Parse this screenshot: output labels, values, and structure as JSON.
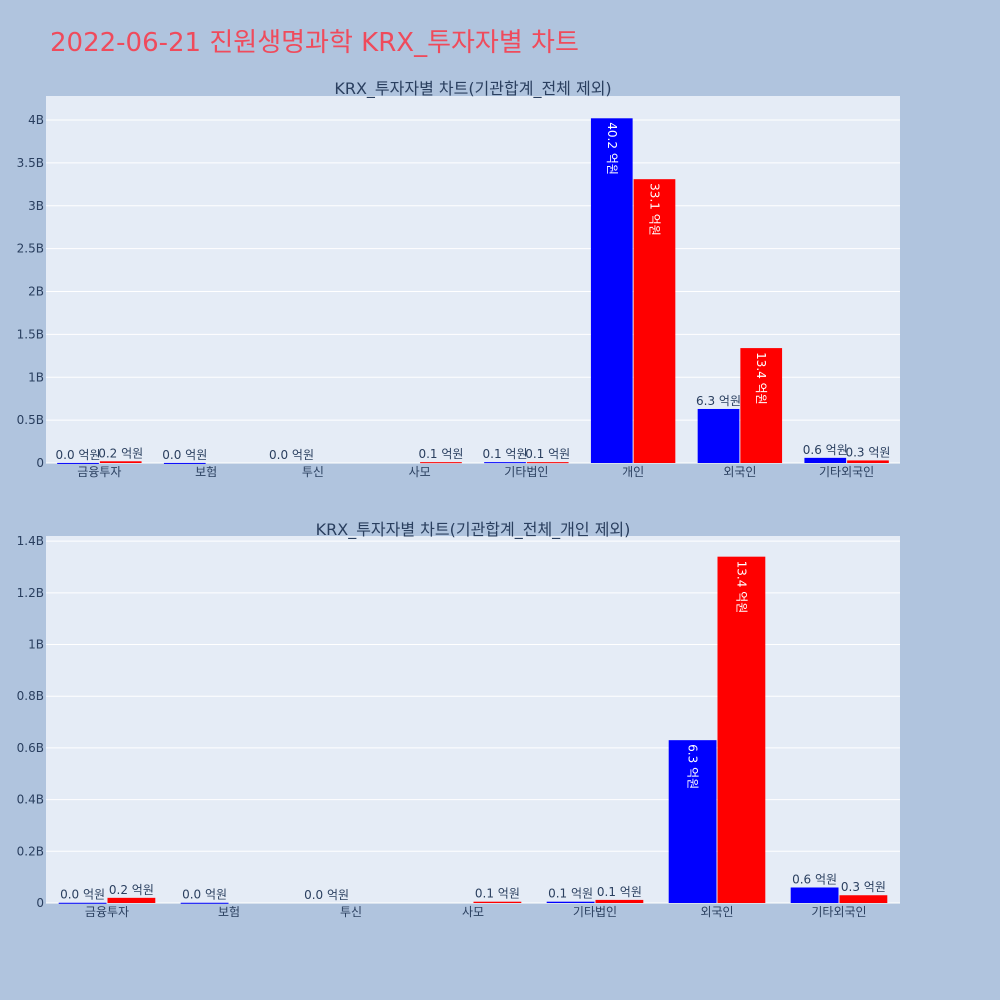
{
  "page": {
    "title": "2022-06-21 진원생명과학 KRX_투자자별 차트"
  },
  "colors": {
    "background": "#b0c4de",
    "plot_bg": "#e5ecf6",
    "title": "#ef4b5c",
    "series_a": "#0000ff",
    "series_b": "#ff0000",
    "text": "#2a3f5f"
  },
  "chart_data": [
    {
      "type": "bar",
      "title": "KRX_투자자별 차트(기관합계_전체 제외)",
      "categories": [
        "금융투자",
        "보험",
        "투신",
        "사모",
        "기타법인",
        "개인",
        "외국인",
        "기타외국인"
      ],
      "series": [
        {
          "color": "#0000ff",
          "values": [
            1000000,
            1000000,
            0,
            0,
            10000000,
            4020000000,
            630000000,
            60000000
          ],
          "labels": [
            "0.0 억원",
            "0.0 억원",
            "0.0 억원",
            "",
            "0.1 억원",
            "40.2 억원",
            "6.3 억원",
            "0.6 억원"
          ]
        },
        {
          "color": "#ff0000",
          "values": [
            20000000,
            0,
            0,
            10000000,
            10000000,
            3310000000,
            1340000000,
            30000000
          ],
          "labels": [
            "0.2 억원",
            "",
            "",
            "0.1 억원",
            "0.1 억원",
            "33.1 억원",
            "13.4 억원",
            "0.3 억원"
          ]
        }
      ],
      "yticks": [
        0,
        500000000,
        1000000000,
        1500000000,
        2000000000,
        2500000000,
        3000000000,
        3500000000,
        4000000000
      ],
      "ytick_labels": [
        "0",
        "0.5B",
        "1B",
        "1.5B",
        "2B",
        "2.5B",
        "3B",
        "3.5B",
        "4B"
      ],
      "ylim": [
        0,
        4280000000
      ],
      "grid": true,
      "legend": "none"
    },
    {
      "type": "bar",
      "title": "KRX_투자자별 차트(기관합계_전체_개인 제외)",
      "categories": [
        "금융투자",
        "보험",
        "투신",
        "사모",
        "기타법인",
        "외국인",
        "기타외국인"
      ],
      "series": [
        {
          "color": "#0000ff",
          "values": [
            1000000,
            1000000,
            0,
            0,
            5000000,
            630000000,
            60000000
          ],
          "labels": [
            "0.0 억원",
            "0.0 억원",
            "0.0 억원",
            "",
            "0.1 억원",
            "6.3 억원",
            "0.6 억원"
          ]
        },
        {
          "color": "#ff0000",
          "values": [
            20000000,
            0,
            0,
            5000000,
            12000000,
            1340000000,
            30000000
          ],
          "labels": [
            "0.2 억원",
            "",
            "",
            "0.1 억원",
            "0.1 억원",
            "13.4 억원",
            "0.3 억원"
          ]
        }
      ],
      "yticks": [
        0,
        200000000,
        400000000,
        600000000,
        800000000,
        1000000000,
        1200000000,
        1400000000
      ],
      "ytick_labels": [
        "0",
        "0.2B",
        "0.4B",
        "0.6B",
        "0.8B",
        "1B",
        "1.2B",
        "1.4B"
      ],
      "ylim": [
        0,
        1420000000
      ],
      "grid": true,
      "legend": "none"
    }
  ]
}
